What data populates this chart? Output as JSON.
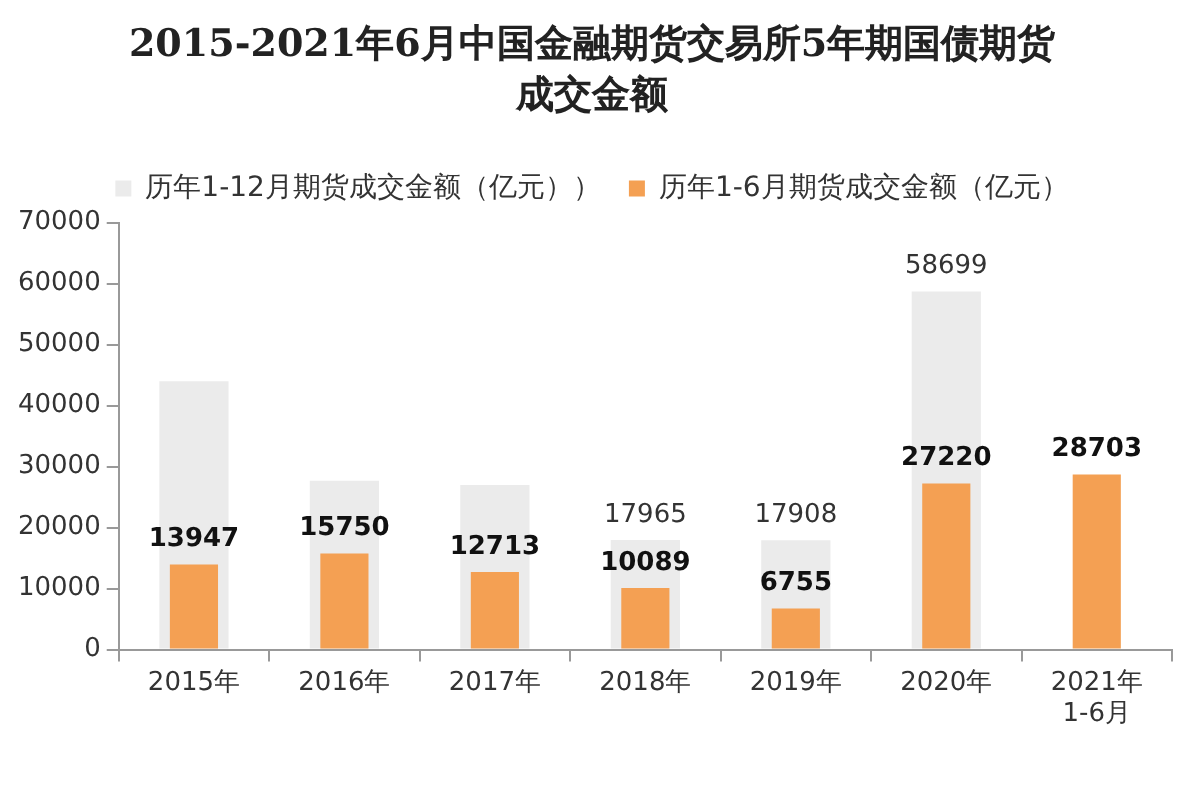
{
  "chart_data": {
    "type": "bar",
    "title": "2015-2021年6月中国金融期货交易所5年期国债期货成交金额",
    "categories": [
      "2015年",
      "2016年",
      "2017年",
      "2018年",
      "2019年",
      "2020年",
      "2021年\n1-6月"
    ],
    "series": [
      {
        "name": "历年1-12月期货成交金额（亿元））",
        "color": "#ebebeb",
        "values": [
          44000,
          27700,
          27000,
          17965,
          17908,
          58699,
          null
        ],
        "value_labels": [
          null,
          null,
          null,
          "17965",
          "17908",
          "58699",
          null
        ]
      },
      {
        "name": "历年1-6月期货成交金额（亿元）",
        "color": "#f4a053",
        "values": [
          13947,
          15750,
          12713,
          10089,
          6755,
          27220,
          28703
        ],
        "value_labels": [
          "13947",
          "15750",
          "12713",
          "10089",
          "6755",
          "27220",
          "28703"
        ]
      }
    ],
    "ylim": [
      0,
      70000
    ],
    "yticks": [
      0,
      10000,
      20000,
      30000,
      40000,
      50000,
      60000,
      70000
    ],
    "grid": false,
    "legend": "top"
  }
}
